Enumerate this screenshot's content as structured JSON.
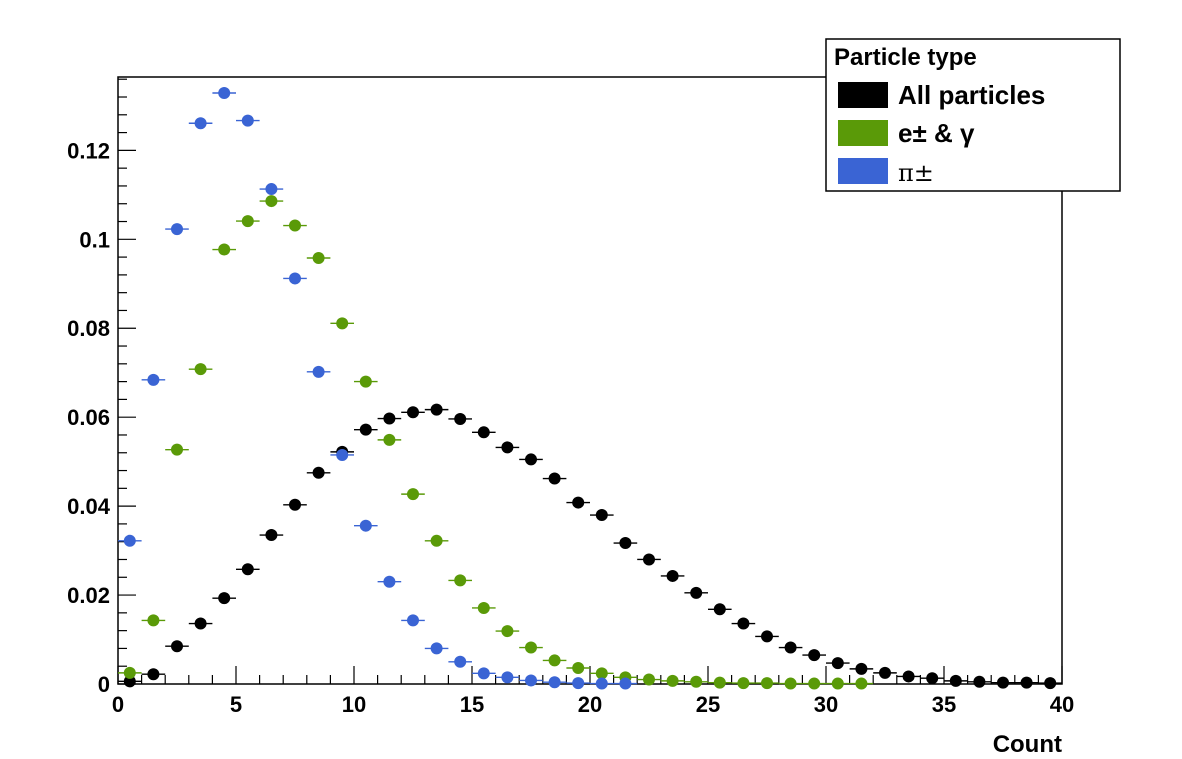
{
  "chart_data": {
    "type": "scatter",
    "title": "",
    "xlabel": "Count",
    "ylabel": "",
    "xlim": [
      0,
      40
    ],
    "ylim": [
      0,
      0.1365
    ],
    "x_ticks": [
      0,
      5,
      10,
      15,
      20,
      25,
      30,
      35,
      40
    ],
    "x_tick_labels": [
      "0",
      "5",
      "10",
      "15",
      "20",
      "25",
      "30",
      "35",
      "40"
    ],
    "y_ticks": [
      0,
      0.02,
      0.04,
      0.06,
      0.08,
      0.1,
      0.12
    ],
    "y_tick_labels": [
      "0",
      "0.02",
      "0.04",
      "0.06",
      "0.08",
      "0.1",
      "0.12"
    ],
    "grid": false,
    "legend": {
      "title": "Particle type",
      "position": "top-right",
      "entries": [
        "All particles",
        "e± & γ",
        "π±"
      ]
    },
    "series": [
      {
        "name": "All particles",
        "color": "#000000",
        "x": [
          0.5,
          1.5,
          2.5,
          3.5,
          4.5,
          5.5,
          6.5,
          7.5,
          8.5,
          9.5,
          10.5,
          11.5,
          12.5,
          13.5,
          14.5,
          15.5,
          16.5,
          17.5,
          18.5,
          19.5,
          20.5,
          21.5,
          22.5,
          23.5,
          24.5,
          25.5,
          26.5,
          27.5,
          28.5,
          29.5,
          30.5,
          31.5,
          32.5,
          33.5,
          34.5,
          35.5,
          36.5,
          37.5,
          38.5,
          39.5
        ],
        "y": [
          0.0006,
          0.0022,
          0.0085,
          0.0136,
          0.0193,
          0.0258,
          0.0335,
          0.0403,
          0.0475,
          0.0522,
          0.0572,
          0.0597,
          0.0611,
          0.0617,
          0.0596,
          0.0566,
          0.0532,
          0.0505,
          0.0462,
          0.0408,
          0.038,
          0.0317,
          0.028,
          0.0243,
          0.0205,
          0.0168,
          0.0136,
          0.0107,
          0.0082,
          0.0065,
          0.0047,
          0.0034,
          0.0025,
          0.0017,
          0.0013,
          0.0007,
          0.0005,
          0.0003,
          0.0003,
          0.0002
        ]
      },
      {
        "name": "e± & γ",
        "color": "#5a9a08",
        "x": [
          0.5,
          1.5,
          2.5,
          3.5,
          4.5,
          5.5,
          6.5,
          7.5,
          8.5,
          9.5,
          10.5,
          11.5,
          12.5,
          13.5,
          14.5,
          15.5,
          16.5,
          17.5,
          18.5,
          19.5,
          20.5,
          21.5,
          22.5,
          23.5,
          24.5,
          25.5,
          26.5,
          27.5,
          28.5,
          29.5,
          30.5,
          31.5
        ],
        "y": [
          0.0025,
          0.0143,
          0.0527,
          0.0708,
          0.0977,
          0.1041,
          0.1086,
          0.1031,
          0.0958,
          0.0811,
          0.068,
          0.0549,
          0.0427,
          0.0322,
          0.0233,
          0.0171,
          0.0119,
          0.0082,
          0.0053,
          0.0036,
          0.0024,
          0.0015,
          0.001,
          0.0007,
          0.0005,
          0.0003,
          0.0002,
          0.0002,
          0.0001,
          0.0001,
          0.0001,
          0.0001
        ]
      },
      {
        "name": "π±",
        "color": "#3a64d4",
        "x": [
          0.5,
          1.5,
          2.5,
          3.5,
          4.5,
          5.5,
          6.5,
          7.5,
          8.5,
          9.5,
          10.5,
          11.5,
          12.5,
          13.5,
          14.5,
          15.5,
          16.5,
          17.5,
          18.5,
          19.5,
          20.5,
          21.5
        ],
        "y": [
          0.0322,
          0.0684,
          0.1023,
          0.1261,
          0.1329,
          0.1267,
          0.1113,
          0.0912,
          0.0702,
          0.0515,
          0.0356,
          0.023,
          0.0143,
          0.008,
          0.005,
          0.0024,
          0.0015,
          0.0008,
          0.0004,
          0.0002,
          0.0001,
          0.0001
        ]
      }
    ]
  }
}
